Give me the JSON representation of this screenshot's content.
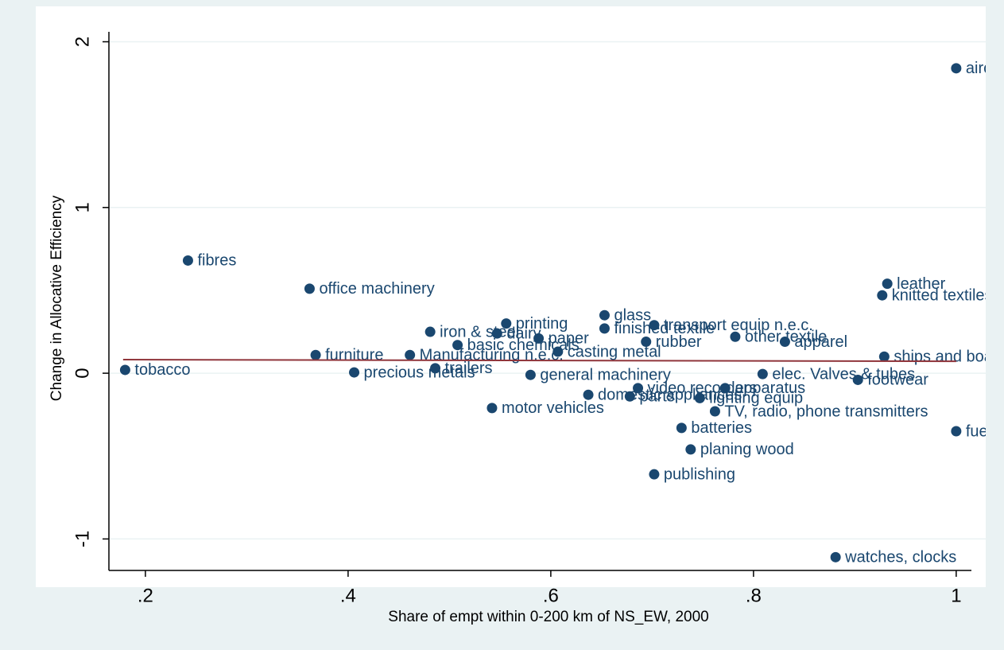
{
  "chart_data": {
    "type": "scatter",
    "xlabel": "Share of empt within 0-200 km of NS_EW, 2000",
    "ylabel": "Change in Allocative Efficiency",
    "xlim": [
      0.164,
      1.015
    ],
    "ylim": [
      -1.19,
      2.06
    ],
    "xticks": [
      {
        "value": 0.2,
        "label": ".2"
      },
      {
        "value": 0.4,
        "label": ".4"
      },
      {
        "value": 0.6,
        "label": ".6"
      },
      {
        "value": 0.8,
        "label": ".8"
      },
      1
    ],
    "yticks": [
      -1,
      0,
      1,
      2
    ],
    "grid": true,
    "series": [
      {
        "type": "scatter",
        "color": "#1a476f",
        "labels": [
          "tobacco",
          "fibres",
          "office machinery",
          "furniture",
          "precious metals",
          "Manufacturing n.e.c.",
          "iron & steel",
          "trailers",
          "basic chemicals",
          "dairy",
          "printing",
          "paper",
          "motor vehicles",
          "casting metal",
          "general machinery",
          "domestic appliances",
          "parts",
          "video recorders",
          "glass",
          "finished textile",
          "transport equip n.e.c.",
          "rubber",
          "other textile",
          "apparel",
          "apparatus",
          "lighting equip",
          "elec. Valves & tubes",
          "TV, radio, phone transmitters",
          "batteries",
          "planing wood",
          "publishing",
          "footwear",
          "watches, clocks",
          "leather",
          "knitted textiles",
          "ships and boats",
          "aircraft",
          "fuel"
        ],
        "x": [
          0.18,
          0.242,
          0.362,
          0.368,
          0.406,
          0.461,
          0.481,
          0.486,
          0.508,
          0.547,
          0.556,
          0.588,
          0.542,
          0.607,
          0.58,
          0.637,
          0.678,
          0.686,
          0.653,
          0.653,
          0.702,
          0.694,
          0.782,
          0.831,
          0.772,
          0.747,
          0.809,
          0.762,
          0.729,
          0.738,
          0.702,
          0.903,
          0.881,
          0.932,
          0.927,
          0.929,
          1,
          1
        ],
        "values": [
          0.02,
          0.68,
          0.51,
          0.11,
          0.005,
          0.11,
          0.25,
          0.03,
          0.17,
          0.24,
          0.3,
          0.21,
          -0.21,
          0.13,
          -0.01,
          -0.13,
          -0.14,
          -0.09,
          0.35,
          0.27,
          0.29,
          0.19,
          0.22,
          0.19,
          -0.09,
          -0.15,
          -0.005,
          -0.23,
          -0.33,
          -0.46,
          -0.61,
          -0.04,
          -1.11,
          0.54,
          0.47,
          0.1,
          1.84,
          -0.35
        ]
      },
      {
        "type": "line",
        "color": "#90353b",
        "x": [
          0.178,
          1
        ],
        "values": [
          0.082,
          0.072
        ]
      }
    ]
  }
}
